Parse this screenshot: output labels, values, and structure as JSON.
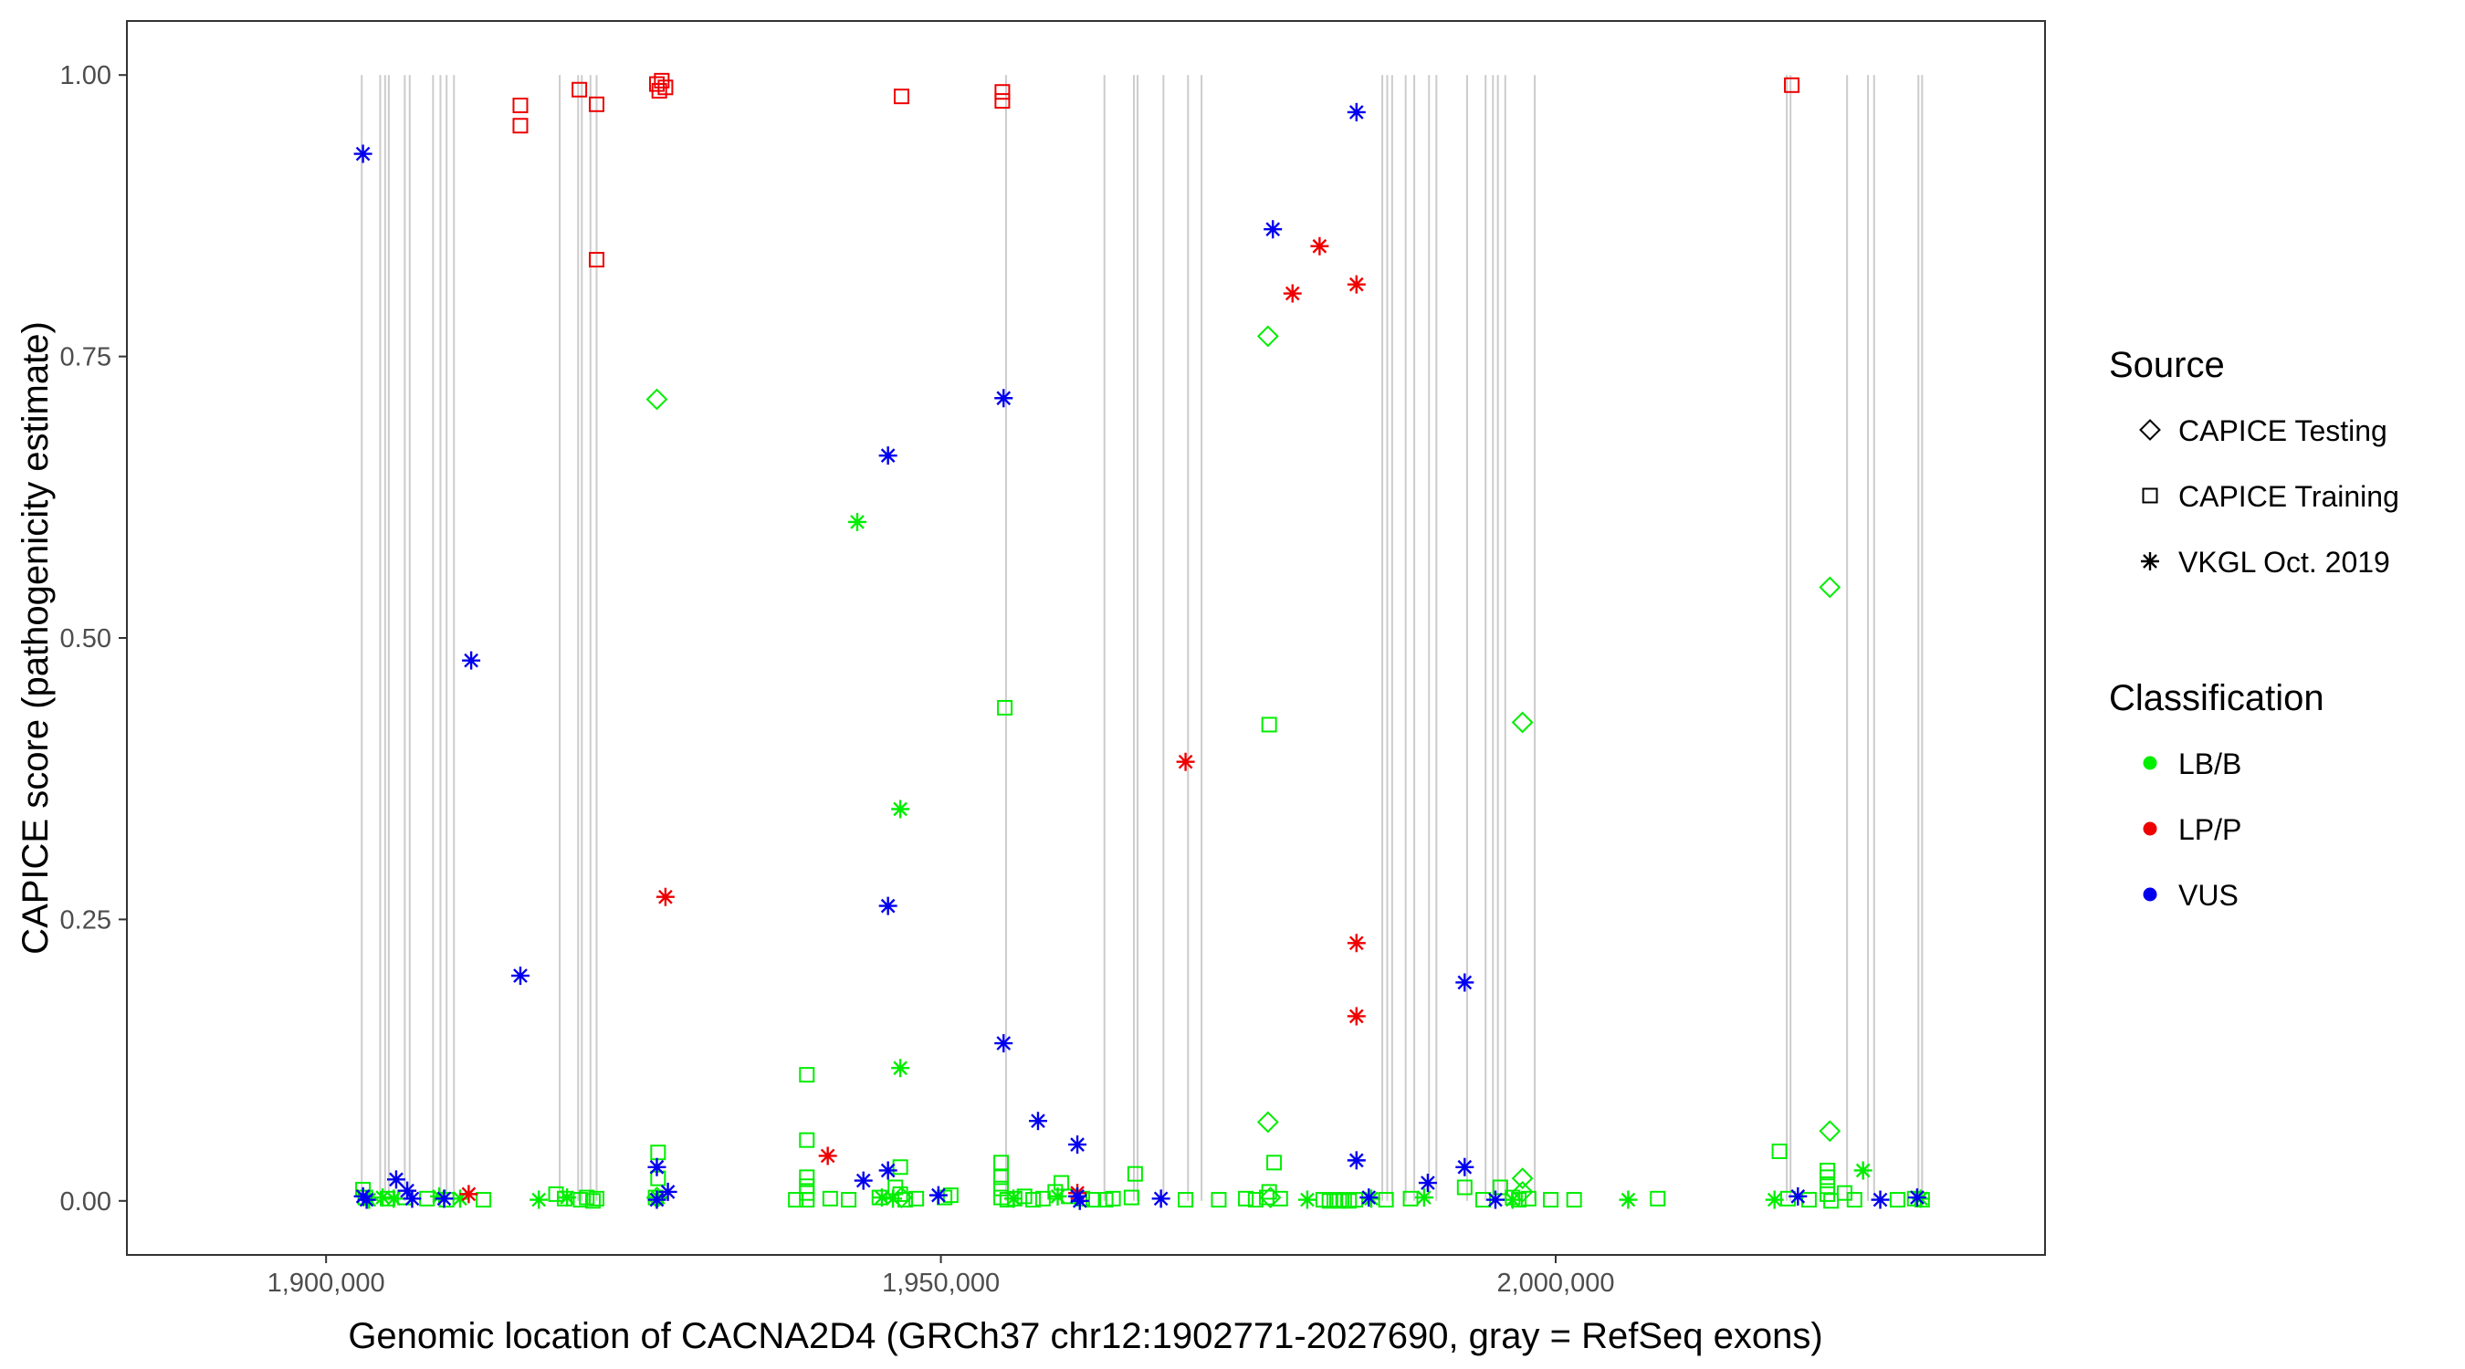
{
  "chart_data": {
    "type": "scatter",
    "title": "",
    "xlabel": "Genomic location of CACNA2D4 (GRCh37 chr12:1902771-2027690, gray = RefSeq exons)",
    "ylabel": "CAPICE score (pathogenicity estimate)",
    "xlim": [
      1883800,
      2039800
    ],
    "ylim": [
      -0.048,
      1.048
    ],
    "x_ticks": [
      {
        "value": 1900000,
        "label": "1,900,000"
      },
      {
        "value": 1950000,
        "label": "1,950,000"
      },
      {
        "value": 2000000,
        "label": "2,000,000"
      }
    ],
    "y_ticks": [
      {
        "value": 0,
        "label": "0.00"
      },
      {
        "value": 0.25,
        "label": "0.25"
      },
      {
        "value": 0.5,
        "label": "0.50"
      },
      {
        "value": 0.75,
        "label": "0.75"
      },
      {
        "value": 1,
        "label": "1.00"
      }
    ],
    "grid": false,
    "exon_line_color": "#cccccc",
    "exons": [
      1902900,
      1904400,
      1904800,
      1905100,
      1906400,
      1906800,
      1908700,
      1909300,
      1909800,
      1910400,
      1919000,
      1920500,
      1920800,
      1921500,
      1922000,
      1955300,
      1963300,
      1965700,
      1966000,
      1968100,
      1970100,
      1971200,
      1985900,
      1986300,
      1986700,
      1987800,
      1988500,
      1989700,
      1990300,
      1992800,
      1994300,
      1994900,
      1995300,
      1995900,
      1998300,
      2018800,
      2019100,
      2023700,
      2025400,
      2025900,
      2029500,
      2029800
    ],
    "legend": {
      "placement": "right",
      "source_title": "Source",
      "source_items": [
        {
          "name": "CAPICE Testing",
          "shape": "diamond"
        },
        {
          "name": "CAPICE Training",
          "shape": "square"
        },
        {
          "name": "VKGL Oct. 2019",
          "shape": "asterisk"
        }
      ],
      "class_title": "Classification",
      "class_items": [
        {
          "name": "LB/B",
          "color": "#00ee00"
        },
        {
          "name": "LP/P",
          "color": "#ee0000"
        },
        {
          "name": "VUS",
          "color": "#0000ee"
        }
      ]
    },
    "series": [
      {
        "source": "CAPICE Testing",
        "classification": "LB/B",
        "points": [
          [
            1926900,
            0.712
          ],
          [
            1976600,
            0.768
          ],
          [
            1976600,
            0.07
          ],
          [
            1997300,
            0.425
          ],
          [
            1997300,
            0.02
          ],
          [
            1997300,
            0.008
          ],
          [
            2022300,
            0.545
          ],
          [
            2022300,
            0.062
          ],
          [
            1926900,
            0.003
          ],
          [
            1946800,
            0.003
          ],
          [
            1976800,
            0.003
          ]
        ]
      },
      {
        "source": "CAPICE Training",
        "classification": "LB/B",
        "points": [
          [
            1903000,
            0.01
          ],
          [
            1903200,
            0.003
          ],
          [
            1905000,
            0.002
          ],
          [
            1906400,
            0.003
          ],
          [
            1908200,
            0.002
          ],
          [
            1909800,
            0.001
          ],
          [
            1912800,
            0.001
          ],
          [
            1918700,
            0.006
          ],
          [
            1919400,
            0.002
          ],
          [
            1920700,
            0.001
          ],
          [
            1921200,
            0.003
          ],
          [
            1921700,
            0.0
          ],
          [
            1922000,
            0.002
          ],
          [
            1927000,
            0.043
          ],
          [
            1927000,
            0.02
          ],
          [
            1926800,
            0.003
          ],
          [
            1938200,
            0.001
          ],
          [
            1939100,
            0.112
          ],
          [
            1939100,
            0.054
          ],
          [
            1939100,
            0.021
          ],
          [
            1939100,
            0.013
          ],
          [
            1939100,
            0.007
          ],
          [
            1939100,
            0.001
          ],
          [
            1941000,
            0.002
          ],
          [
            1942500,
            0.001
          ],
          [
            1945000,
            0.003
          ],
          [
            1946300,
            0.012
          ],
          [
            1946700,
            0.03
          ],
          [
            1946700,
            0.006
          ],
          [
            1947100,
            0.001
          ],
          [
            1948000,
            0.002
          ],
          [
            1950300,
            0.003
          ],
          [
            1950800,
            0.005
          ],
          [
            1954900,
            0.034
          ],
          [
            1954900,
            0.021
          ],
          [
            1954900,
            0.011
          ],
          [
            1954900,
            0.003
          ],
          [
            1955200,
            0.438
          ],
          [
            1955400,
            0.001
          ],
          [
            1956000,
            0.002
          ],
          [
            1956800,
            0.004
          ],
          [
            1957500,
            0.001
          ],
          [
            1958300,
            0.002
          ],
          [
            1959300,
            0.008
          ],
          [
            1959800,
            0.016
          ],
          [
            1960400,
            0.004
          ],
          [
            1961500,
            0.002
          ],
          [
            1962400,
            0.001
          ],
          [
            1963400,
            0.001
          ],
          [
            1964000,
            0.002
          ],
          [
            1965500,
            0.003
          ],
          [
            1965800,
            0.024
          ],
          [
            1969900,
            0.001
          ],
          [
            1972600,
            0.001
          ],
          [
            1974800,
            0.002
          ],
          [
            1975600,
            0.001
          ],
          [
            1976500,
            0.003
          ],
          [
            1976700,
            0.423
          ],
          [
            1976700,
            0.008
          ],
          [
            1977100,
            0.034
          ],
          [
            1977600,
            0.002
          ],
          [
            1981100,
            0.001
          ],
          [
            1981600,
            0.0
          ],
          [
            1982000,
            0.001
          ],
          [
            1982400,
            0.0
          ],
          [
            1982800,
            0.001
          ],
          [
            1983200,
            0.0
          ],
          [
            1983700,
            0.001
          ],
          [
            1986200,
            0.001
          ],
          [
            1988200,
            0.002
          ],
          [
            1992600,
            0.012
          ],
          [
            1994100,
            0.001
          ],
          [
            1995500,
            0.012
          ],
          [
            1996500,
            0.003
          ],
          [
            1997000,
            0.001
          ],
          [
            1997800,
            0.002
          ],
          [
            1999600,
            0.001
          ],
          [
            2001500,
            0.001
          ],
          [
            2008300,
            0.002
          ],
          [
            2018200,
            0.044
          ],
          [
            2018900,
            0.002
          ],
          [
            2020600,
            0.001
          ],
          [
            2022100,
            0.027
          ],
          [
            2022100,
            0.021
          ],
          [
            2022100,
            0.013
          ],
          [
            2022100,
            0.006
          ],
          [
            2022400,
            0.0
          ],
          [
            2023500,
            0.007
          ],
          [
            2024300,
            0.001
          ],
          [
            2027800,
            0.001
          ],
          [
            2029200,
            0.002
          ],
          [
            2029800,
            0.001
          ]
        ]
      },
      {
        "source": "VKGL Oct. 2019",
        "classification": "LB/B",
        "points": [
          [
            1903500,
            0.001
          ],
          [
            1904600,
            0.003
          ],
          [
            1905500,
            0.002
          ],
          [
            1909200,
            0.004
          ],
          [
            1910900,
            0.002
          ],
          [
            1917300,
            0.001
          ],
          [
            1919600,
            0.003
          ],
          [
            1927000,
            0.003
          ],
          [
            1943200,
            0.603
          ],
          [
            1945200,
            0.003
          ],
          [
            1946700,
            0.348
          ],
          [
            1946700,
            0.118
          ],
          [
            1946100,
            0.002
          ],
          [
            1955900,
            0.002
          ],
          [
            1959500,
            0.004
          ],
          [
            1979800,
            0.001
          ],
          [
            1985000,
            0.002
          ],
          [
            1989300,
            0.003
          ],
          [
            1996500,
            0.001
          ],
          [
            2005900,
            0.001
          ],
          [
            2017800,
            0.001
          ],
          [
            2025000,
            0.027
          ],
          [
            2029700,
            0.002
          ]
        ]
      },
      {
        "source": "CAPICE Training",
        "classification": "LP/P",
        "points": [
          [
            1915800,
            0.973
          ],
          [
            1915800,
            0.955
          ],
          [
            1920600,
            0.987
          ],
          [
            1922000,
            0.974
          ],
          [
            1922000,
            0.836
          ],
          [
            1926900,
            0.992
          ],
          [
            1927100,
            0.986
          ],
          [
            1927300,
            0.995
          ],
          [
            1927600,
            0.989
          ],
          [
            1946800,
            0.981
          ],
          [
            1955000,
            0.985
          ],
          [
            1955000,
            0.977
          ],
          [
            2019200,
            0.991
          ]
        ]
      },
      {
        "source": "VKGL Oct. 2019",
        "classification": "LP/P",
        "points": [
          [
            1911600,
            0.006
          ],
          [
            1927600,
            0.27
          ],
          [
            1940800,
            0.04
          ],
          [
            1961100,
            0.007
          ],
          [
            1969900,
            0.39
          ],
          [
            1978600,
            0.806
          ],
          [
            1980800,
            0.848
          ],
          [
            1983800,
            0.814
          ],
          [
            1983800,
            0.229
          ],
          [
            1983800,
            0.164
          ]
        ]
      },
      {
        "source": "VKGL Oct. 2019",
        "classification": "VUS",
        "points": [
          [
            1903000,
            0.93
          ],
          [
            1903000,
            0.004
          ],
          [
            1903300,
            0.001
          ],
          [
            1905700,
            0.019
          ],
          [
            1906600,
            0.009
          ],
          [
            1907000,
            0.002
          ],
          [
            1909600,
            0.002
          ],
          [
            1911800,
            0.48
          ],
          [
            1915800,
            0.2
          ],
          [
            1926900,
            0.03
          ],
          [
            1926900,
            0.001
          ],
          [
            1927800,
            0.008
          ],
          [
            1943700,
            0.018
          ],
          [
            1945700,
            0.662
          ],
          [
            1945700,
            0.262
          ],
          [
            1945700,
            0.027
          ],
          [
            1949800,
            0.005
          ],
          [
            1955100,
            0.713
          ],
          [
            1955100,
            0.14
          ],
          [
            1957900,
            0.071
          ],
          [
            1961100,
            0.05
          ],
          [
            1961100,
            0.004
          ],
          [
            1961300,
            0.0
          ],
          [
            1967900,
            0.002
          ],
          [
            1977000,
            0.863
          ],
          [
            1983800,
            0.967
          ],
          [
            1983800,
            0.036
          ],
          [
            1984800,
            0.003
          ],
          [
            1989600,
            0.016
          ],
          [
            1992600,
            0.194
          ],
          [
            1992600,
            0.03
          ],
          [
            1995100,
            0.001
          ],
          [
            2019700,
            0.004
          ],
          [
            2026400,
            0.001
          ],
          [
            2029400,
            0.003
          ]
        ]
      }
    ]
  }
}
